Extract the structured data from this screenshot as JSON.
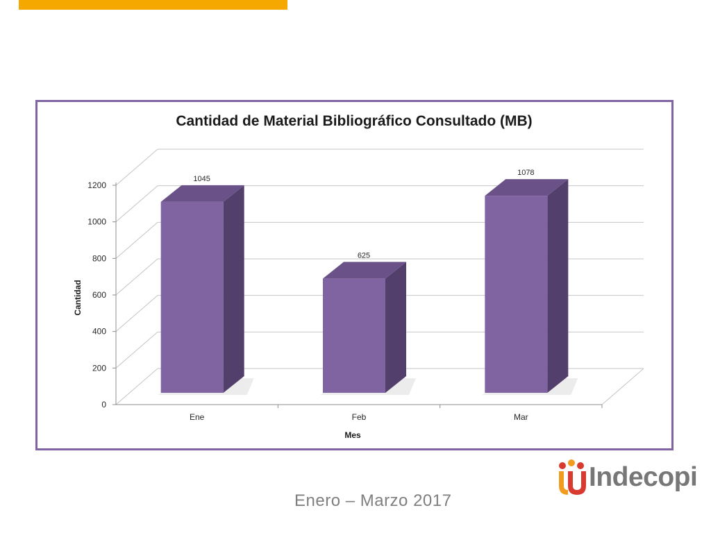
{
  "colors": {
    "accent": "#f5a800",
    "frame": "#7f63a2",
    "bar_front": "#8064a2",
    "bar_side": "#533f6b",
    "bar_top": "#6a5289",
    "grid": "#c4c4c4",
    "logo_red": "#d83a2f",
    "logo_orange": "#f29c1f",
    "logo_purple": "#8a55a3",
    "logo_text": "#777777"
  },
  "chart_data": {
    "type": "bar",
    "title": "Cantidad de Material Bibliográfico Consultado (MB)",
    "xlabel": "Mes",
    "ylabel": "Cantidad",
    "categories": [
      "Ene",
      "Feb",
      "Mar"
    ],
    "values": [
      1045,
      625,
      1078
    ],
    "data_labels": [
      "1045",
      "625",
      "1078"
    ],
    "ylim": [
      0,
      1200
    ],
    "yticks": [
      0,
      200,
      400,
      600,
      800,
      1000,
      1200
    ],
    "grid": true,
    "style": "3d-column",
    "legend": "none"
  },
  "footer": {
    "period": "Enero – Marzo 2017",
    "logo_text": "Indecopi"
  }
}
